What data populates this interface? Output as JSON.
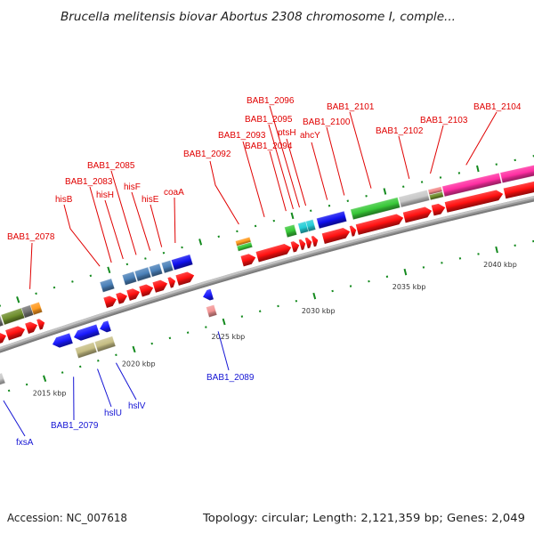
{
  "title": "Brucella melitensis biovar Abortus 2308 chromosome I, comple...",
  "footer": {
    "accession": "Accession: NC_007618",
    "summary": "Topology: circular; Length: 2,121,359 bp; Genes: 2,049"
  },
  "ruler": {
    "unit": "kbp",
    "minor_tick_kbp": 1,
    "major_tick_kbp": 5,
    "visible_range_kbp": [
      2010,
      2046
    ],
    "labels": [
      {
        "kbp": 2015,
        "text": "2015 kbp"
      },
      {
        "kbp": 2020,
        "text": "2020 kbp"
      },
      {
        "kbp": 2025,
        "text": "2025 kbp"
      },
      {
        "kbp": 2030,
        "text": "2030 kbp"
      },
      {
        "kbp": 2035,
        "text": "2035 kbp"
      },
      {
        "kbp": 2040,
        "text": "2040 kbp"
      }
    ]
  },
  "colors": {
    "forward_label": "#e00000",
    "reverse_label": "#1414d4",
    "tick": "#148a1e",
    "backbone": "#9c9c9c"
  },
  "features": [
    {
      "track": "forward_cds",
      "strand": "+",
      "shape": "arrow",
      "start_kbp": 2012.47,
      "end_kbp": 2013.81,
      "color": "#ff1010"
    },
    {
      "track": "forward_cds",
      "strand": "+",
      "shape": "arrow",
      "start_kbp": 2013.86,
      "end_kbp": 2014.85,
      "color": "#ff1010"
    },
    {
      "track": "forward_cds",
      "strand": "+",
      "shape": "arrow",
      "start_kbp": 2014.95,
      "end_kbp": 2015.54,
      "color": "#ff1010"
    },
    {
      "track": "forward_cds",
      "strand": "+",
      "shape": "arrow",
      "start_kbp": 2015.59,
      "end_kbp": 2015.94,
      "color": "#ff1010",
      "label": "BAB1_2078"
    },
    {
      "track": "forward_cds",
      "strand": "+",
      "shape": "arrow",
      "start_kbp": 2019.29,
      "end_kbp": 2019.92,
      "color": "#ff1010",
      "label": "hisB"
    },
    {
      "track": "forward_cds",
      "strand": "+",
      "shape": "arrow",
      "start_kbp": 2019.97,
      "end_kbp": 2020.51,
      "color": "#ff1010",
      "label": "BAB1_2083"
    },
    {
      "track": "forward_cds",
      "strand": "+",
      "shape": "arrow",
      "start_kbp": 2020.56,
      "end_kbp": 2021.2,
      "color": "#ff1010",
      "label": "hisH"
    },
    {
      "track": "forward_cds",
      "strand": "+",
      "shape": "arrow",
      "start_kbp": 2021.25,
      "end_kbp": 2021.94,
      "color": "#ff1010",
      "label": "BAB1_2085"
    },
    {
      "track": "forward_cds",
      "strand": "+",
      "shape": "arrow",
      "start_kbp": 2021.99,
      "end_kbp": 2022.72,
      "color": "#ff1010",
      "label": "hisF"
    },
    {
      "track": "forward_cds",
      "strand": "+",
      "shape": "arrow",
      "start_kbp": 2022.82,
      "end_kbp": 2023.16,
      "color": "#ff1010",
      "label": "hisE"
    },
    {
      "track": "forward_cds",
      "strand": "+",
      "shape": "arrow",
      "start_kbp": 2023.26,
      "end_kbp": 2024.19,
      "color": "#ff1010",
      "label": "coaA"
    },
    {
      "track": "forward_cds",
      "strand": "+",
      "shape": "arrow",
      "start_kbp": 2026.82,
      "end_kbp": 2027.56,
      "color": "#ff1010",
      "label": "BAB1_2092"
    },
    {
      "track": "forward_cds",
      "strand": "+",
      "shape": "arrow",
      "start_kbp": 2027.65,
      "end_kbp": 2029.5,
      "color": "#ff1010",
      "label": "BAB1_2093"
    },
    {
      "track": "forward_cds",
      "strand": "+",
      "shape": "arrow",
      "start_kbp": 2029.55,
      "end_kbp": 2029.94,
      "color": "#ff1010",
      "label": "BAB1_2094"
    },
    {
      "track": "forward_cds",
      "strand": "+",
      "shape": "arrow",
      "start_kbp": 2029.99,
      "end_kbp": 2030.28,
      "color": "#ff1010",
      "label": "BAB1_2095"
    },
    {
      "track": "forward_cds",
      "strand": "+",
      "shape": "arrow",
      "start_kbp": 2030.33,
      "end_kbp": 2030.62,
      "color": "#ff1010",
      "label": "BAB1_2096"
    },
    {
      "track": "forward_cds",
      "strand": "+",
      "shape": "arrow",
      "start_kbp": 2030.67,
      "end_kbp": 2030.96,
      "color": "#ff1010",
      "label": "ptsH"
    },
    {
      "track": "forward_cds",
      "strand": "+",
      "shape": "arrow",
      "start_kbp": 2031.25,
      "end_kbp": 2032.7,
      "color": "#ff1010",
      "label": "ahcY"
    },
    {
      "track": "forward_cds",
      "strand": "+",
      "shape": "arrow",
      "start_kbp": 2032.75,
      "end_kbp": 2033.04,
      "color": "#ff1010",
      "label": "BAB1_2100"
    },
    {
      "track": "forward_cds",
      "strand": "+",
      "shape": "arrow",
      "start_kbp": 2033.09,
      "end_kbp": 2035.6,
      "color": "#ff1010",
      "label": "BAB1_2101"
    },
    {
      "track": "forward_cds",
      "strand": "+",
      "shape": "arrow",
      "start_kbp": 2035.65,
      "end_kbp": 2037.14,
      "color": "#ff1010",
      "label": "BAB1_2102"
    },
    {
      "track": "forward_cds",
      "strand": "+",
      "shape": "arrow",
      "start_kbp": 2037.19,
      "end_kbp": 2037.87,
      "color": "#ff1010",
      "label": "BAB1_2103"
    },
    {
      "track": "forward_cds",
      "strand": "+",
      "shape": "arrow",
      "start_kbp": 2037.91,
      "end_kbp": 2040.99,
      "color": "#ff1010",
      "label": "BAB1_2104"
    },
    {
      "track": "forward_cds",
      "strand": "+",
      "shape": "arrow",
      "start_kbp": 2041.08,
      "end_kbp": 2043.62,
      "color": "#ff1010"
    },
    {
      "track": "forward_features",
      "strand": "+",
      "shape": "box",
      "start_kbp": 2013.26,
      "end_kbp": 2013.85,
      "color": "#737373"
    },
    {
      "track": "forward_features",
      "strand": "+",
      "shape": "box",
      "start_kbp": 2013.9,
      "end_kbp": 2015.03,
      "color": "#6e8e2c"
    },
    {
      "track": "forward_features",
      "strand": "+",
      "shape": "box",
      "start_kbp": 2015.03,
      "end_kbp": 2015.52,
      "color": "#737373"
    },
    {
      "track": "forward_features",
      "strand": "+",
      "shape": "box",
      "start_kbp": 2015.52,
      "end_kbp": 2016.01,
      "color": "#ff9a1e"
    },
    {
      "track": "forward_features",
      "strand": "+",
      "shape": "box",
      "start_kbp": 2019.35,
      "end_kbp": 2019.99,
      "color": "#4a80b8"
    },
    {
      "track": "forward_features",
      "strand": "+",
      "shape": "box",
      "start_kbp": 2020.58,
      "end_kbp": 2021.21,
      "color": "#4a80b8"
    },
    {
      "track": "forward_features",
      "strand": "+",
      "shape": "box",
      "start_kbp": 2021.26,
      "end_kbp": 2022.0,
      "color": "#4a80b8"
    },
    {
      "track": "forward_features",
      "strand": "+",
      "shape": "box",
      "start_kbp": 2022.05,
      "end_kbp": 2022.63,
      "color": "#4a80b8"
    },
    {
      "track": "forward_features",
      "strand": "+",
      "shape": "box",
      "start_kbp": 2022.73,
      "end_kbp": 2023.22,
      "color": "#4a80b8"
    },
    {
      "track": "forward_features",
      "strand": "+",
      "shape": "box",
      "start_kbp": 2023.27,
      "end_kbp": 2024.29,
      "color": "#1010f0"
    },
    {
      "track": "forward_features",
      "strand": "+",
      "shape": "box",
      "start_kbp": 2026.77,
      "end_kbp": 2027.55,
      "color": "#ff9a1e",
      "lane": "top"
    },
    {
      "track": "forward_features",
      "strand": "+",
      "shape": "box",
      "start_kbp": 2026.77,
      "end_kbp": 2027.55,
      "color": "#38c838",
      "lane": "bottom"
    },
    {
      "track": "forward_features",
      "strand": "+",
      "shape": "box",
      "start_kbp": 2029.44,
      "end_kbp": 2029.97,
      "color": "#38c838"
    },
    {
      "track": "forward_features",
      "strand": "+",
      "shape": "box",
      "start_kbp": 2030.17,
      "end_kbp": 2030.6,
      "color": "#24cdd6"
    },
    {
      "track": "forward_features",
      "strand": "+",
      "shape": "box",
      "start_kbp": 2030.6,
      "end_kbp": 2030.99,
      "color": "#24cdd6"
    },
    {
      "track": "forward_features",
      "strand": "+",
      "shape": "box",
      "start_kbp": 2031.18,
      "end_kbp": 2032.68,
      "color": "#1010f0"
    },
    {
      "track": "forward_features",
      "strand": "+",
      "shape": "box",
      "start_kbp": 2033.02,
      "end_kbp": 2035.57,
      "color": "#38c838"
    },
    {
      "track": "forward_features",
      "strand": "+",
      "shape": "box",
      "start_kbp": 2035.62,
      "end_kbp": 2037.16,
      "color": "#c9c9c9"
    },
    {
      "track": "forward_features",
      "strand": "+",
      "shape": "box",
      "start_kbp": 2037.21,
      "end_kbp": 2037.92,
      "color": "#f28a8a",
      "lane": "top"
    },
    {
      "track": "forward_features",
      "strand": "+",
      "shape": "box",
      "start_kbp": 2037.21,
      "end_kbp": 2037.92,
      "color": "#6e8e2c",
      "lane": "bottom"
    },
    {
      "track": "forward_features",
      "strand": "+",
      "shape": "box",
      "start_kbp": 2037.97,
      "end_kbp": 2041.04,
      "color": "#ff2ea2"
    },
    {
      "track": "forward_features",
      "strand": "+",
      "shape": "box",
      "start_kbp": 2041.09,
      "end_kbp": 2043.8,
      "color": "#ff2ea2"
    },
    {
      "track": "reverse_cds",
      "strand": "-",
      "shape": "arrow",
      "start_kbp": 2015.97,
      "end_kbp": 2017.01,
      "color": "#1a1aff",
      "label": "BAB1_2079"
    },
    {
      "track": "reverse_cds",
      "strand": "-",
      "shape": "arrow",
      "start_kbp": 2017.16,
      "end_kbp": 2018.5,
      "color": "#1a1aff",
      "label": "hslU"
    },
    {
      "track": "reverse_cds",
      "strand": "-",
      "shape": "arrow",
      "start_kbp": 2018.6,
      "end_kbp": 2019.14,
      "color": "#1a1aff",
      "label": "hslV"
    },
    {
      "track": "reverse_cds",
      "strand": "-",
      "shape": "arrow",
      "start_kbp": 2024.31,
      "end_kbp": 2024.81,
      "color": "#1a1aff",
      "label": "BAB1_2089"
    },
    {
      "track": "reverse_features",
      "strand": "-",
      "shape": "box",
      "start_kbp": 2012.15,
      "end_kbp": 2012.95,
      "color": "#c9c9c9",
      "label": "fxsA"
    },
    {
      "track": "reverse_features",
      "strand": "-",
      "shape": "box",
      "start_kbp": 2017.04,
      "end_kbp": 2018.08,
      "color": "#c6be84"
    },
    {
      "track": "reverse_features",
      "strand": "-",
      "shape": "box",
      "start_kbp": 2018.13,
      "end_kbp": 2019.12,
      "color": "#c6be84"
    },
    {
      "track": "reverse_features",
      "strand": "-",
      "shape": "box",
      "start_kbp": 2024.31,
      "end_kbp": 2024.75,
      "color": "#f39494"
    }
  ]
}
